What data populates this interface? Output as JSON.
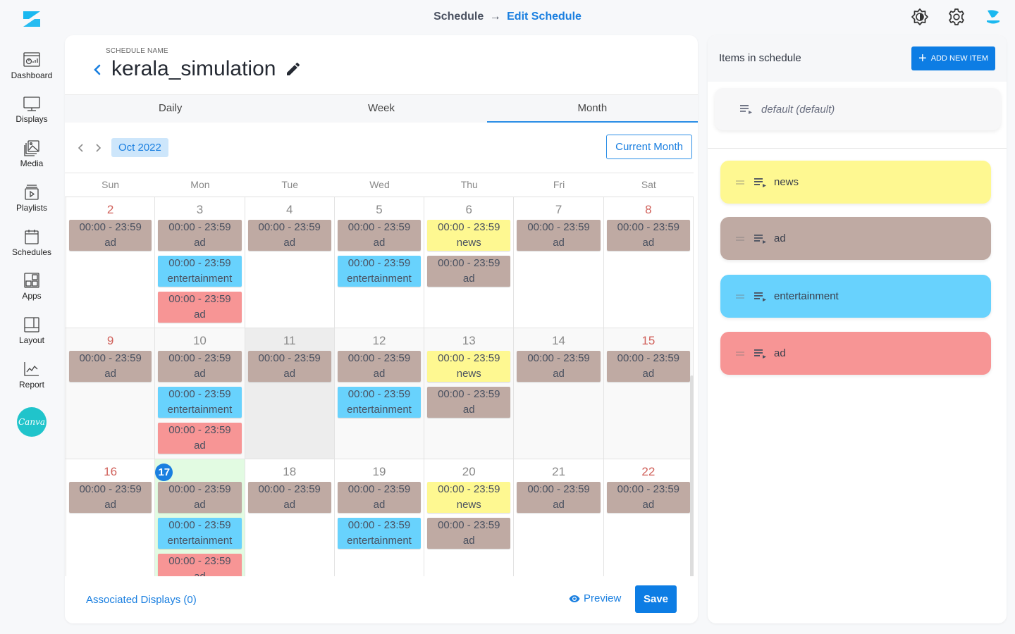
{
  "app": {
    "breadcrumb": {
      "root": "Schedule",
      "arrow": "→",
      "current": "Edit Schedule"
    }
  },
  "sidebar": {
    "items": [
      {
        "label": "Dashboard",
        "icon": "dashboard-icon"
      },
      {
        "label": "Displays",
        "icon": "monitor-icon"
      },
      {
        "label": "Media",
        "icon": "media-icon"
      },
      {
        "label": "Playlists",
        "icon": "playlist-icon"
      },
      {
        "label": "Schedules",
        "icon": "calendar-icon"
      },
      {
        "label": "Apps",
        "icon": "apps-icon"
      },
      {
        "label": "Layout",
        "icon": "layout-icon"
      },
      {
        "label": "Report",
        "icon": "chart-icon"
      }
    ],
    "canva_label": "Canva"
  },
  "schedule": {
    "label": "SCHEDULE NAME",
    "name": "kerala_simulation"
  },
  "tabs": [
    {
      "label": "Daily",
      "active": false
    },
    {
      "label": "Week",
      "active": false
    },
    {
      "label": "Month",
      "active": true
    }
  ],
  "calendar": {
    "month_label": "Oct 2022",
    "current_month_label": "Current Month",
    "weekdays": [
      "Sun",
      "Mon",
      "Tue",
      "Wed",
      "Thu",
      "Fri",
      "Sat"
    ],
    "weeks": [
      {
        "days": [
          {
            "num": "2",
            "red": true,
            "events": [
              {
                "time": "00:00 - 23:59",
                "name": "ad",
                "color": "brown"
              }
            ]
          },
          {
            "num": "3",
            "events": [
              {
                "time": "00:00 - 23:59",
                "name": "ad",
                "color": "brown"
              },
              {
                "time": "00:00 - 23:59",
                "name": "entertainment",
                "color": "blue"
              },
              {
                "time": "00:00 - 23:59",
                "name": "ad",
                "color": "pink"
              }
            ]
          },
          {
            "num": "4",
            "events": [
              {
                "time": "00:00 - 23:59",
                "name": "ad",
                "color": "brown"
              }
            ]
          },
          {
            "num": "5",
            "events": [
              {
                "time": "00:00 - 23:59",
                "name": "ad",
                "color": "brown"
              },
              {
                "time": "00:00 - 23:59",
                "name": "entertainment",
                "color": "blue"
              }
            ]
          },
          {
            "num": "6",
            "events": [
              {
                "time": "00:00 - 23:59",
                "name": "news",
                "color": "yellow"
              },
              {
                "time": "00:00 - 23:59",
                "name": "ad",
                "color": "brown"
              }
            ]
          },
          {
            "num": "7",
            "events": [
              {
                "time": "00:00 - 23:59",
                "name": "ad",
                "color": "brown"
              }
            ]
          },
          {
            "num": "8",
            "red": true,
            "events": [
              {
                "time": "00:00 - 23:59",
                "name": "ad",
                "color": "brown"
              }
            ]
          }
        ]
      },
      {
        "days": [
          {
            "num": "9",
            "red": true,
            "events": [
              {
                "time": "00:00 - 23:59",
                "name": "ad",
                "color": "brown"
              }
            ]
          },
          {
            "num": "10",
            "events": [
              {
                "time": "00:00 - 23:59",
                "name": "ad",
                "color": "brown"
              },
              {
                "time": "00:00 - 23:59",
                "name": "entertainment",
                "color": "blue"
              },
              {
                "time": "00:00 - 23:59",
                "name": "ad",
                "color": "pink"
              }
            ]
          },
          {
            "num": "11",
            "grey": true,
            "events": [
              {
                "time": "00:00 - 23:59",
                "name": "ad",
                "color": "brown"
              }
            ]
          },
          {
            "num": "12",
            "events": [
              {
                "time": "00:00 - 23:59",
                "name": "ad",
                "color": "brown"
              },
              {
                "time": "00:00 - 23:59",
                "name": "entertainment",
                "color": "blue"
              }
            ]
          },
          {
            "num": "13",
            "events": [
              {
                "time": "00:00 - 23:59",
                "name": "news",
                "color": "yellow"
              },
              {
                "time": "00:00 - 23:59",
                "name": "ad",
                "color": "brown"
              }
            ]
          },
          {
            "num": "14",
            "events": [
              {
                "time": "00:00 - 23:59",
                "name": "ad",
                "color": "brown"
              }
            ]
          },
          {
            "num": "15",
            "red": true,
            "events": [
              {
                "time": "00:00 - 23:59",
                "name": "ad",
                "color": "brown"
              }
            ]
          }
        ]
      },
      {
        "days": [
          {
            "num": "16",
            "red": true,
            "events": [
              {
                "time": "00:00 - 23:59",
                "name": "ad",
                "color": "brown"
              }
            ]
          },
          {
            "num": "17",
            "today": true,
            "events": [
              {
                "time": "00:00 - 23:59",
                "name": "ad",
                "color": "brown"
              },
              {
                "time": "00:00 - 23:59",
                "name": "entertainment",
                "color": "blue"
              },
              {
                "time": "00:00 - 23:59",
                "name": "ad",
                "color": "pink"
              }
            ]
          },
          {
            "num": "18",
            "events": [
              {
                "time": "00:00 - 23:59",
                "name": "ad",
                "color": "brown"
              }
            ]
          },
          {
            "num": "19",
            "events": [
              {
                "time": "00:00 - 23:59",
                "name": "ad",
                "color": "brown"
              },
              {
                "time": "00:00 - 23:59",
                "name": "entertainment",
                "color": "blue"
              }
            ]
          },
          {
            "num": "20",
            "events": [
              {
                "time": "00:00 - 23:59",
                "name": "news",
                "color": "yellow"
              },
              {
                "time": "00:00 - 23:59",
                "name": "ad",
                "color": "brown"
              }
            ]
          },
          {
            "num": "21",
            "events": [
              {
                "time": "00:00 - 23:59",
                "name": "ad",
                "color": "brown"
              }
            ]
          },
          {
            "num": "22",
            "red": true,
            "events": [
              {
                "time": "00:00 - 23:59",
                "name": "ad",
                "color": "brown"
              }
            ]
          }
        ]
      }
    ]
  },
  "footer": {
    "associated_displays": "Associated Displays (0)",
    "preview": "Preview",
    "save": "Save"
  },
  "items_panel": {
    "title": "Items in schedule",
    "add_button": "ADD NEW ITEM",
    "default_item": "default (default)",
    "items": [
      {
        "label": "news",
        "color": "#fef891"
      },
      {
        "label": "ad",
        "color": "#bfaaa3"
      },
      {
        "label": "entertainment",
        "color": "#68d2fd"
      },
      {
        "label": "ad",
        "color": "#f79595"
      }
    ]
  },
  "colors": {
    "accent": "#0d7de4",
    "ad_brown": "#bfaaa3",
    "entertainment_blue": "#68d2fd",
    "ad_pink": "#f79595",
    "news_yellow": "#fef891",
    "today_bg": "#e2fbe2"
  }
}
